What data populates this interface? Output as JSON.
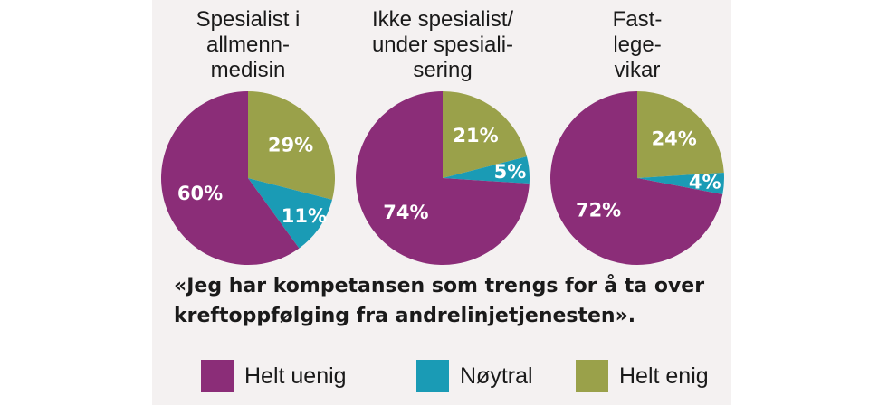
{
  "chart_data": {
    "type": "pie",
    "title": "«Jeg har kompetansen som trengs for å ta over kreftoppfølging fra andrelinjetjenesten».",
    "title_lines": [
      "«Jeg har kompetansen som trengs for å ta over",
      "kreftoppfølging fra andrelinjetjenesten»."
    ],
    "categories": [
      "Helt uenig",
      "Nøytral",
      "Helt enig"
    ],
    "colors": [
      "#8b2d78",
      "#1a9bb5",
      "#9aa14a"
    ],
    "series": [
      {
        "name": "Spesialist i allmennmedisin",
        "title_lines": [
          "Spesialist i",
          "allmenn-",
          "medisin"
        ],
        "values": [
          60,
          11,
          29
        ]
      },
      {
        "name": "Ikke spesialist/under spesialisering",
        "title_lines": [
          "Ikke spesialist/",
          "under spesiali-",
          "sering"
        ],
        "values": [
          74,
          5,
          21
        ]
      },
      {
        "name": "Fastlegevikar",
        "title_lines": [
          "Fast-",
          "lege-",
          "vikar"
        ],
        "values": [
          72,
          4,
          24
        ]
      }
    ],
    "legend": "bottom"
  }
}
